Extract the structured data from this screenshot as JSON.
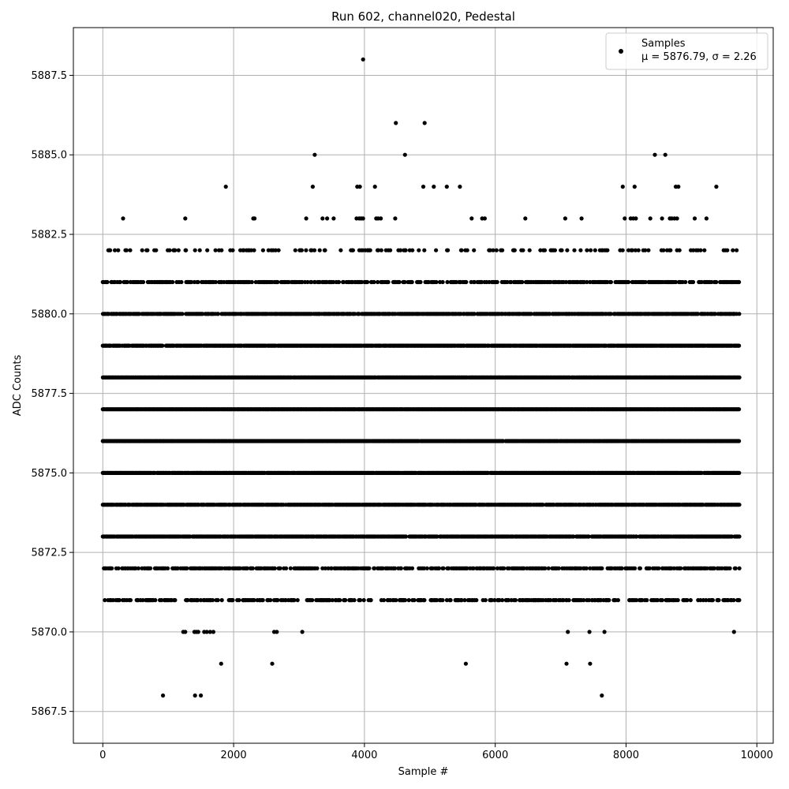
{
  "chart_data": {
    "type": "scatter",
    "title": "Run 602, channel020, Pedestal",
    "xlabel": "Sample #",
    "ylabel": "ADC Counts",
    "xlim": [
      -450,
      10250
    ],
    "ylim": [
      5866.5,
      5889.0
    ],
    "xticks": [
      0,
      2000,
      4000,
      6000,
      8000,
      10000
    ],
    "xtick_labels": [
      "0",
      "2000",
      "4000",
      "6000",
      "8000",
      "10000"
    ],
    "yticks": [
      5867.5,
      5870.0,
      5872.5,
      5875.0,
      5877.5,
      5880.0,
      5882.5,
      5885.0,
      5887.5
    ],
    "ytick_labels": [
      "5867.5",
      "5870.0",
      "5872.5",
      "5875.0",
      "5877.5",
      "5880.0",
      "5882.5",
      "5885.0",
      "5887.5"
    ],
    "grid": true,
    "legend": {
      "placement": "top-right",
      "entries": [
        {
          "name": "Samples",
          "detail": "μ = 5876.79, σ = 2.26"
        }
      ]
    },
    "series": [
      {
        "name": "Samples",
        "color": "#000000",
        "marker": "circle",
        "x_range": [
          0,
          9740
        ],
        "n_points": 9741,
        "level_density": [
          {
            "y": 5868,
            "x": [
              920,
              1410,
              1500,
              7630
            ]
          },
          {
            "y": 5869,
            "x": [
              1810,
              2590,
              5550,
              7090,
              7450
            ]
          },
          {
            "y": 5870,
            "x": [
              1230,
              1260,
              1400,
              1430,
              1460,
              1550,
              1590,
              1640,
              1690,
              2620,
              2660,
              3050,
              7110,
              7440,
              7670,
              9650
            ]
          },
          {
            "y": 5871,
            "fill": 0.45
          },
          {
            "y": 5872,
            "fill": 0.6
          },
          {
            "y": 5873,
            "fill": 0.85
          },
          {
            "y": 5874,
            "fill": 0.92
          },
          {
            "y": 5875,
            "fill": 0.96
          },
          {
            "y": 5876,
            "fill": 0.98
          },
          {
            "y": 5877,
            "fill": 1.0
          },
          {
            "y": 5878,
            "fill": 0.98
          },
          {
            "y": 5879,
            "fill": 0.95
          },
          {
            "y": 5880,
            "fill": 0.85
          },
          {
            "y": 5881,
            "fill": 0.6
          },
          {
            "y": 5882,
            "fill": 0.22
          },
          {
            "y": 5883,
            "x": [
              310,
              1260,
              2300,
              2320,
              3110,
              3360,
              3430,
              3530,
              3880,
              3920,
              3950,
              3980,
              4180,
              4210,
              4250,
              4470,
              5640,
              5800,
              5840,
              6460,
              7070,
              7320,
              7980,
              8070,
              8110,
              8150,
              8370,
              8550,
              8670,
              8700,
              8740,
              8780,
              9050,
              9230
            ]
          },
          {
            "y": 5884,
            "x": [
              1880,
              3210,
              3890,
              3930,
              4160,
              4900,
              5060,
              5260,
              5460,
              7950,
              8130,
              8760,
              8800,
              9380
            ]
          },
          {
            "y": 5885,
            "x": [
              3240,
              4620,
              8440,
              8600
            ]
          },
          {
            "y": 5886,
            "x": [
              4480,
              4920
            ]
          },
          {
            "y": 5888,
            "x": [
              3980
            ]
          }
        ]
      }
    ]
  }
}
